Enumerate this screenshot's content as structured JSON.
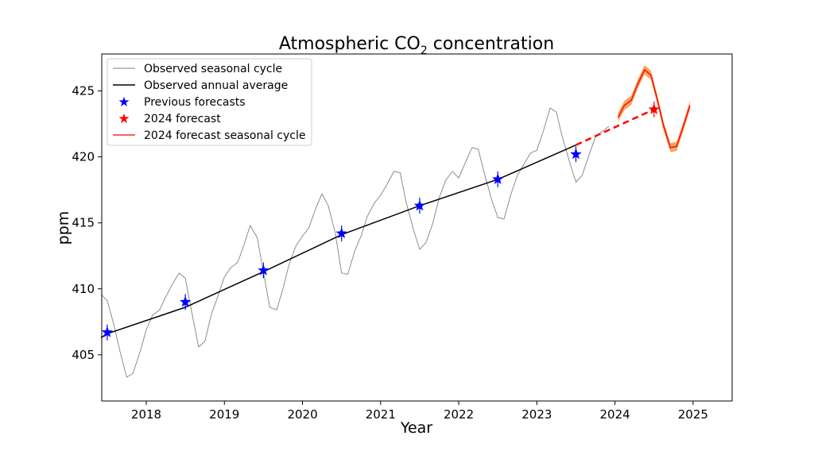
{
  "chart_data": {
    "type": "line",
    "title": "Atmospheric CO",
    "title_sub": "2",
    "title_end": " concentration",
    "xlabel": "Year",
    "ylabel": "ppm",
    "xlim": [
      2017.43,
      2025.5
    ],
    "ylim": [
      401.5,
      427.8
    ],
    "xticks": [
      2018,
      2019,
      2020,
      2021,
      2022,
      2023,
      2024,
      2025
    ],
    "yticks": [
      405,
      410,
      415,
      420,
      425
    ],
    "grid": false,
    "legend_position": "top-left",
    "legend": [
      "Observed seasonal cycle",
      "Observed annual average",
      "Previous forecasts",
      "2024 forecast",
      "2024 forecast seasonal cycle"
    ],
    "colors": {
      "seasonal": "#808080",
      "annual": "#000000",
      "previous": "#0000ff",
      "forecast": "#ff0000",
      "band": "#f5a259"
    },
    "series": [
      {
        "name": "Observed seasonal cycle",
        "x": [
          2017.42,
          2017.5,
          2017.58,
          2017.67,
          2017.75,
          2017.83,
          2017.92,
          2018.0,
          2018.08,
          2018.17,
          2018.25,
          2018.33,
          2018.42,
          2018.5,
          2018.58,
          2018.67,
          2018.75,
          2018.83,
          2018.92,
          2019.0,
          2019.08,
          2019.17,
          2019.25,
          2019.33,
          2019.42,
          2019.5,
          2019.58,
          2019.67,
          2019.75,
          2019.83,
          2019.92,
          2020.0,
          2020.08,
          2020.17,
          2020.25,
          2020.33,
          2020.42,
          2020.5,
          2020.58,
          2020.67,
          2020.75,
          2020.83,
          2020.92,
          2021.0,
          2021.08,
          2021.17,
          2021.25,
          2021.33,
          2021.42,
          2021.5,
          2021.58,
          2021.67,
          2021.75,
          2021.83,
          2021.92,
          2022.0,
          2022.08,
          2022.17,
          2022.25,
          2022.33,
          2022.42,
          2022.5,
          2022.58,
          2022.67,
          2022.75,
          2022.83,
          2022.92,
          2023.0,
          2023.08,
          2023.17,
          2023.25,
          2023.33,
          2023.42,
          2023.5,
          2023.58,
          2023.67,
          2023.75,
          2023.83,
          2023.92
        ],
        "values": [
          409.6,
          409.1,
          407.4,
          405.1,
          403.3,
          403.6,
          405.2,
          406.9,
          408.0,
          408.4,
          409.4,
          410.3,
          411.2,
          410.8,
          408.3,
          405.6,
          406.0,
          408.0,
          409.5,
          410.9,
          411.6,
          412.0,
          413.3,
          414.8,
          413.9,
          411.3,
          408.6,
          408.4,
          410.0,
          411.9,
          413.3,
          414.0,
          414.6,
          416.1,
          417.2,
          416.3,
          414.2,
          411.2,
          411.1,
          412.9,
          414.0,
          415.5,
          416.5,
          417.1,
          417.9,
          418.9,
          418.8,
          416.5,
          414.5,
          413.0,
          413.5,
          415.0,
          416.9,
          418.2,
          418.9,
          418.4,
          419.5,
          420.7,
          420.6,
          418.7,
          416.8,
          415.4,
          415.3,
          417.2,
          418.6,
          419.4,
          420.3,
          420.5,
          421.9,
          423.7,
          423.4,
          421.4,
          419.6,
          418.1,
          418.6,
          420.2,
          421.5,
          421.9,
          422.3
        ]
      },
      {
        "name": "Observed annual average",
        "x": [
          2017.42,
          2017.5,
          2018.5,
          2019.5,
          2020.5,
          2021.5,
          2022.5,
          2023.5
        ],
        "values": [
          406.3,
          406.6,
          408.6,
          411.3,
          414.1,
          416.3,
          418.3,
          420.9
        ]
      },
      {
        "name": "Previous forecasts",
        "x": [
          2017.5,
          2018.5,
          2019.5,
          2020.5,
          2021.5,
          2022.5,
          2023.5
        ],
        "values": [
          406.7,
          409.0,
          411.4,
          414.2,
          416.3,
          418.3,
          420.2
        ],
        "error": [
          0.6,
          0.6,
          0.6,
          0.6,
          0.6,
          0.6,
          0.6
        ]
      },
      {
        "name": "2024 forecast",
        "x": [
          2024.5
        ],
        "values": [
          423.6
        ],
        "error": [
          0.6
        ]
      },
      {
        "name": "2024 forecast seasonal cycle",
        "x": [
          2024.04,
          2024.12,
          2024.21,
          2024.29,
          2024.38,
          2024.46,
          2024.54,
          2024.62,
          2024.71,
          2024.79,
          2024.88,
          2024.96
        ],
        "values": [
          423.0,
          423.9,
          424.3,
          425.5,
          426.6,
          426.2,
          424.4,
          422.4,
          420.7,
          420.8,
          422.4,
          423.9
        ],
        "band_half_width": 0.35
      }
    ],
    "forecast_link": {
      "x": [
        2023.5,
        2024.5
      ],
      "values": [
        420.9,
        423.6
      ]
    }
  }
}
